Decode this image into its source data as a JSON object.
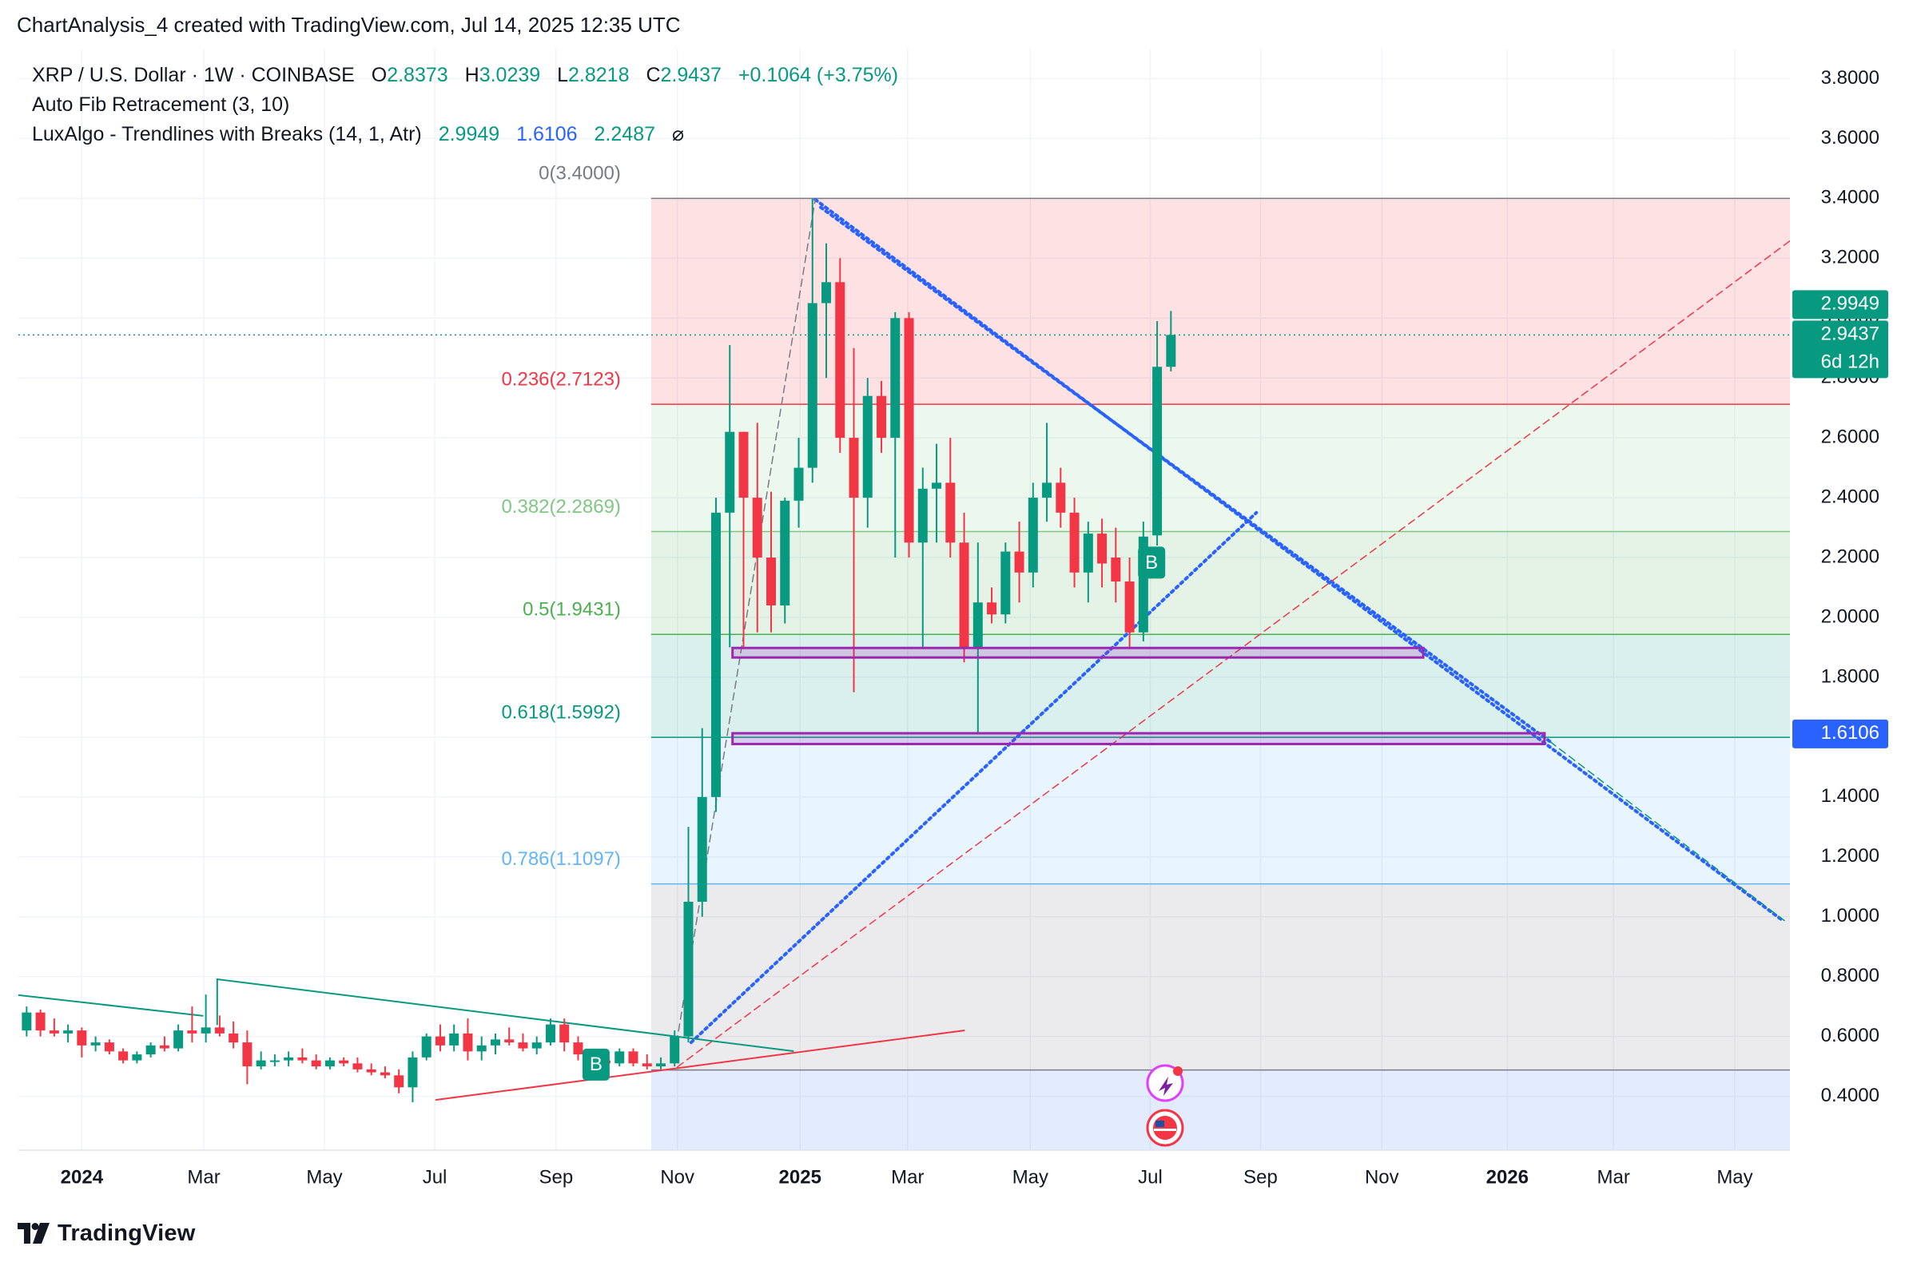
{
  "header": "ChartAnalysis_4 created with TradingView.com, Jul 14, 2025 12:35 UTC",
  "footer": "TradingView",
  "chart_data": {
    "type": "candlestick",
    "series": [
      {
        "name": "XRP / U.S. Dollar · 1W · COINBASE",
        "up_color": "#089981",
        "down_color": "#f23645",
        "x": [
          -4,
          -3,
          -2,
          -1,
          0,
          1,
          2,
          3,
          4,
          5,
          6,
          7,
          8,
          9,
          10,
          11,
          12,
          13,
          14,
          15,
          16,
          17,
          18,
          19,
          20,
          21,
          22,
          23,
          24,
          25,
          26,
          27,
          28,
          29,
          30,
          31,
          32,
          33,
          34,
          35,
          36,
          37,
          38,
          39,
          40,
          41,
          42,
          43,
          44,
          45,
          46,
          47,
          48,
          49,
          50,
          51,
          52,
          53,
          54,
          55,
          56,
          57,
          58,
          59,
          60,
          61,
          62,
          63,
          64,
          65,
          66,
          67,
          68,
          69,
          70,
          71,
          72,
          73,
          74,
          75,
          76,
          77,
          78,
          79
        ],
        "open": [
          0.62,
          0.68,
          0.62,
          0.61,
          0.62,
          0.57,
          0.58,
          0.55,
          0.52,
          0.54,
          0.57,
          0.56,
          0.62,
          0.61,
          0.63,
          0.61,
          0.58,
          0.5,
          0.52,
          0.52,
          0.53,
          0.52,
          0.5,
          0.52,
          0.51,
          0.49,
          0.48,
          0.47,
          0.43,
          0.53,
          0.6,
          0.57,
          0.61,
          0.55,
          0.57,
          0.59,
          0.58,
          0.56,
          0.58,
          0.64,
          0.58,
          0.54,
          0.52,
          0.51,
          0.55,
          0.51,
          0.5,
          0.51,
          0.6,
          1.05,
          1.4,
          2.35,
          2.62,
          2.4,
          2.2,
          2.04,
          2.39,
          2.5,
          3.05,
          3.12,
          2.6,
          2.4,
          2.74,
          2.6,
          3.0,
          2.25,
          2.43,
          2.45,
          2.25,
          1.9,
          2.05,
          2.01,
          2.22,
          2.15,
          2.4,
          2.45,
          2.35,
          2.15,
          2.28,
          2.2,
          2.12,
          1.95,
          2.274,
          2.8373
        ],
        "high": [
          0.7,
          0.69,
          0.66,
          0.64,
          0.63,
          0.6,
          0.59,
          0.56,
          0.55,
          0.58,
          0.6,
          0.64,
          0.7,
          0.74,
          0.67,
          0.65,
          0.62,
          0.55,
          0.54,
          0.55,
          0.56,
          0.54,
          0.53,
          0.53,
          0.53,
          0.51,
          0.5,
          0.49,
          0.55,
          0.61,
          0.64,
          0.64,
          0.66,
          0.6,
          0.61,
          0.63,
          0.61,
          0.6,
          0.66,
          0.66,
          0.6,
          0.55,
          0.54,
          0.56,
          0.56,
          0.54,
          0.53,
          0.62,
          1.3,
          1.63,
          2.4,
          2.91,
          2.62,
          2.65,
          2.42,
          2.4,
          2.6,
          3.4,
          3.25,
          3.2,
          2.9,
          2.8,
          2.79,
          3.02,
          3.02,
          2.5,
          2.58,
          2.6,
          2.35,
          2.25,
          2.1,
          2.25,
          2.32,
          2.45,
          2.65,
          2.5,
          2.4,
          2.32,
          2.33,
          2.3,
          2.2,
          2.32,
          2.99,
          3.0239
        ],
        "low": [
          0.6,
          0.6,
          0.6,
          0.58,
          0.53,
          0.55,
          0.54,
          0.51,
          0.51,
          0.53,
          0.55,
          0.55,
          0.58,
          0.58,
          0.6,
          0.56,
          0.44,
          0.49,
          0.5,
          0.5,
          0.51,
          0.49,
          0.49,
          0.5,
          0.48,
          0.47,
          0.46,
          0.41,
          0.38,
          0.52,
          0.55,
          0.55,
          0.52,
          0.52,
          0.54,
          0.57,
          0.55,
          0.54,
          0.57,
          0.55,
          0.52,
          0.51,
          0.5,
          0.5,
          0.5,
          0.49,
          0.49,
          0.5,
          0.58,
          1.0,
          1.35,
          1.9,
          1.9,
          1.95,
          1.95,
          1.98,
          2.3,
          2.45,
          2.8,
          2.55,
          1.75,
          2.3,
          2.55,
          2.2,
          2.2,
          1.9,
          2.25,
          2.2,
          1.85,
          1.61,
          1.98,
          1.98,
          2.05,
          2.1,
          2.32,
          2.3,
          2.1,
          2.05,
          2.1,
          2.05,
          1.9,
          1.92,
          2.24,
          2.8218
        ],
        "close": [
          0.68,
          0.62,
          0.61,
          0.62,
          0.57,
          0.58,
          0.55,
          0.52,
          0.54,
          0.57,
          0.56,
          0.62,
          0.61,
          0.63,
          0.61,
          0.58,
          0.5,
          0.52,
          0.52,
          0.53,
          0.52,
          0.5,
          0.52,
          0.51,
          0.49,
          0.48,
          0.47,
          0.43,
          0.53,
          0.6,
          0.57,
          0.61,
          0.55,
          0.57,
          0.59,
          0.58,
          0.56,
          0.58,
          0.64,
          0.58,
          0.54,
          0.52,
          0.51,
          0.55,
          0.51,
          0.5,
          0.51,
          0.6,
          1.05,
          1.4,
          2.35,
          2.62,
          2.4,
          2.2,
          2.04,
          2.39,
          2.5,
          3.05,
          3.12,
          2.6,
          2.4,
          2.74,
          2.6,
          3.0,
          2.25,
          2.43,
          2.45,
          2.25,
          1.9,
          2.05,
          2.01,
          2.22,
          2.15,
          2.4,
          2.45,
          2.35,
          2.15,
          2.28,
          2.18,
          2.12,
          1.95,
          2.27,
          2.8373,
          2.9437
        ]
      }
    ],
    "ohlc_labels": [
      "O",
      "H",
      "L",
      "C"
    ],
    "change": "+0.1064 (+3.75%)",
    "indicators": [
      {
        "name": "Auto Fib Retracement (3, 10)"
      },
      {
        "name": "LuxAlgo - Trendlines with Breaks (14, 1, Atr)",
        "values": [
          2.9949,
          1.6106,
          2.2487
        ],
        "colors": [
          "#089981",
          "#2962ff",
          "#089981"
        ],
        "suffix": "⌀"
      }
    ],
    "countdown": "6d 12h",
    "fib": {
      "x_start": 41.3,
      "levels": [
        {
          "value": 3.4,
          "label": "0(3.4000)",
          "color": "#787b86"
        },
        {
          "value": 2.7123,
          "label": "0.236(2.7123)",
          "color": "#f23645"
        },
        {
          "value": 2.2869,
          "label": "0.382(2.2869)",
          "color": "#81c784"
        },
        {
          "value": 1.9431,
          "label": "0.5(1.9431)",
          "color": "#4caf50"
        },
        {
          "value": 1.5992,
          "label": "0.618(1.5992)",
          "color": "#089981"
        },
        {
          "value": 1.1097,
          "label": "0.786(1.1097)",
          "color": "#64b5f6"
        },
        {
          "value": 0.488,
          "label": null,
          "color": "#787b86"
        }
      ],
      "fill_below": "#2962ff"
    },
    "drawings": [
      {
        "color": "#2962ff",
        "style": "dotted",
        "width": 4,
        "points": [
          {
            "x": 53.2,
            "y": 3.396
          },
          {
            "x": 123.3,
            "y": 0.99
          }
        ]
      },
      {
        "color": "#2962ff",
        "style": "dotted",
        "width": 4,
        "points": [
          {
            "x": 53.6,
            "y": 3.37
          },
          {
            "x": 106.5,
            "y": 1.585
          }
        ]
      },
      {
        "color": "#2962ff",
        "style": "dotted",
        "width": 4,
        "points": [
          {
            "x": 44.2,
            "y": 0.58
          },
          {
            "x": 85.2,
            "y": 2.35
          }
        ]
      },
      {
        "color": "#f23645",
        "style": "dashed",
        "width": 1.5,
        "points": [
          {
            "x": 43.2,
            "y": 0.498
          },
          {
            "x": 123.9,
            "y": 3.258
          }
        ]
      },
      {
        "color": "#787b86",
        "style": "dashed",
        "width": 1.5,
        "points": [
          {
            "x": 43.0,
            "y": 0.539
          },
          {
            "x": 53.2,
            "y": 3.396
          }
        ]
      },
      {
        "color": "#089981",
        "style": "solid",
        "width": 2,
        "points": [
          {
            "x": -4.6,
            "y": 0.738
          },
          {
            "x": 8.76,
            "y": 0.669
          }
        ]
      },
      {
        "color": "#089981",
        "style": "solid",
        "width": 2,
        "points": [
          {
            "x": 9.82,
            "y": 0.64
          },
          {
            "x": 9.82,
            "y": 0.791
          },
          {
            "x": 51.6,
            "y": 0.551
          }
        ]
      },
      {
        "color": "#f23645",
        "style": "solid",
        "width": 2,
        "points": [
          {
            "x": 25.7,
            "y": 0.388
          },
          {
            "x": 64.0,
            "y": 0.62
          }
        ]
      },
      {
        "color": "#089981",
        "style": "dashed",
        "width": 1.5,
        "points": [
          {
            "x": 106.5,
            "y": 1.585
          },
          {
            "x": 123.5,
            "y": 0.987
          }
        ]
      }
    ],
    "boxes": [
      {
        "x": [
          47.2,
          97.3
        ],
        "y": [
          1.898,
          1.866
        ],
        "color": "#9c27b0"
      },
      {
        "x": [
          47.2,
          106.1
        ],
        "y": [
          1.613,
          1.577
        ],
        "color": "#9c27b0"
      }
    ],
    "signals": [
      {
        "x": 77.6,
        "y": 2.183,
        "label": "B"
      },
      {
        "x": 37.3,
        "y": 0.506,
        "label": "B"
      }
    ],
    "xlim": [
      -4.6,
      123.9
    ],
    "ylim": [
      0.22,
      3.9
    ],
    "xticks": [
      {
        "value": 0,
        "label": "2024"
      },
      {
        "value": 8.85,
        "label": "Mar"
      },
      {
        "value": 17.6,
        "label": "May"
      },
      {
        "value": 25.6,
        "label": "Jul"
      },
      {
        "value": 34.4,
        "label": "Sep"
      },
      {
        "value": 43.2,
        "label": "Nov"
      },
      {
        "value": 52.1,
        "label": "2025"
      },
      {
        "value": 59.9,
        "label": "Mar"
      },
      {
        "value": 68.8,
        "label": "May"
      },
      {
        "value": 77.5,
        "label": "Jul"
      },
      {
        "value": 85.5,
        "label": "Sep"
      },
      {
        "value": 94.3,
        "label": "Nov"
      },
      {
        "value": 103.4,
        "label": "2026"
      },
      {
        "value": 111.1,
        "label": "Mar"
      },
      {
        "value": 119.9,
        "label": "May"
      }
    ],
    "yticks": [
      {
        "value": 0.4,
        "label": "0.4000"
      },
      {
        "value": 0.6,
        "label": "0.6000"
      },
      {
        "value": 0.8,
        "label": "0.8000"
      },
      {
        "value": 1.0,
        "label": "1.0000"
      },
      {
        "value": 1.2,
        "label": "1.2000"
      },
      {
        "value": 1.4,
        "label": "1.4000"
      },
      {
        "value": 1.6,
        "label": "1.6000"
      },
      {
        "value": 1.8,
        "label": "1.8000"
      },
      {
        "value": 2.0,
        "label": "2.0000"
      },
      {
        "value": 2.2,
        "label": "2.2000"
      },
      {
        "value": 2.4,
        "label": "2.4000"
      },
      {
        "value": 2.6,
        "label": "2.6000"
      },
      {
        "value": 2.8,
        "label": "2.8000"
      },
      {
        "value": 3.0,
        "label": "3.0000"
      },
      {
        "value": 3.2,
        "label": "3.2000"
      },
      {
        "value": 3.4,
        "label": "3.4000"
      },
      {
        "value": 3.6,
        "label": "3.6000"
      },
      {
        "value": 3.8,
        "label": "3.8000"
      }
    ],
    "grid": true,
    "last_price_line": true
  }
}
